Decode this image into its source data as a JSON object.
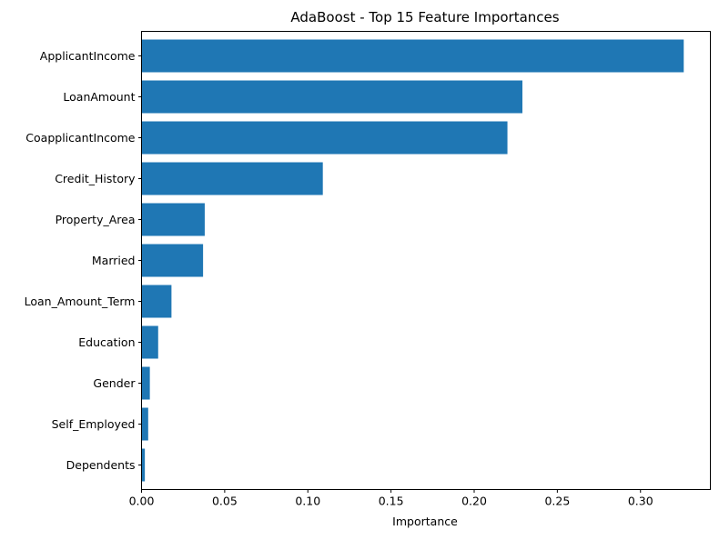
{
  "chart_data": {
    "type": "bar",
    "orientation": "horizontal",
    "title": "AdaBoost - Top 15 Feature Importances",
    "xlabel": "Importance",
    "ylabel": "",
    "categories": [
      "ApplicantIncome",
      "LoanAmount",
      "CoapplicantIncome",
      "Credit_History",
      "Property_Area",
      "Married",
      "Loan_Amount_Term",
      "Education",
      "Gender",
      "Self_Employed",
      "Dependents"
    ],
    "values": [
      0.326,
      0.229,
      0.22,
      0.109,
      0.038,
      0.037,
      0.018,
      0.01,
      0.005,
      0.004,
      0.002
    ],
    "xlim": [
      0,
      0.342
    ],
    "xticks": [
      0.0,
      0.05,
      0.1,
      0.15,
      0.2,
      0.25,
      0.3
    ],
    "xtick_labels": [
      "0.00",
      "0.05",
      "0.10",
      "0.15",
      "0.20",
      "0.25",
      "0.30"
    ],
    "bar_color": "#1f77b4",
    "grid": false,
    "legend": "none"
  }
}
